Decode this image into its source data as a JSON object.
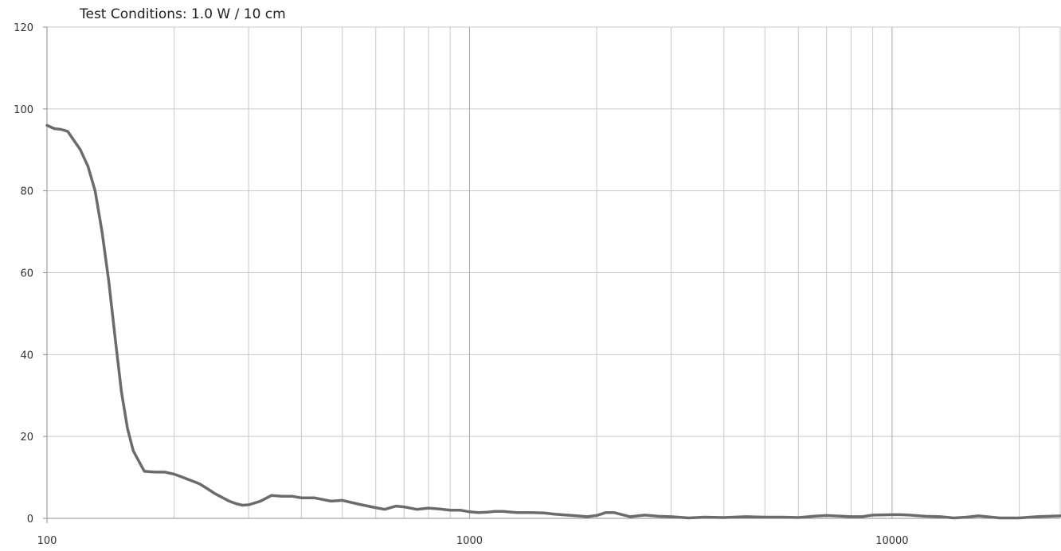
{
  "chart_data": {
    "type": "line",
    "title": "Test Conditions: 1.0 W / 10 cm",
    "xlabel": "",
    "ylabel": "",
    "x_scale": "log",
    "xlim": [
      100,
      25000
    ],
    "ylim": [
      0,
      120
    ],
    "x_ticks": [
      {
        "value": 100,
        "label": "100"
      },
      {
        "value": 1000,
        "label": "1000"
      },
      {
        "value": 10000,
        "label": "10000"
      }
    ],
    "y_ticks": [
      {
        "value": 0,
        "label": "0"
      },
      {
        "value": 20,
        "label": "20"
      },
      {
        "value": 40,
        "label": "40"
      },
      {
        "value": 60,
        "label": "60"
      },
      {
        "value": 80,
        "label": "80"
      },
      {
        "value": 100,
        "label": "100"
      },
      {
        "value": 120,
        "label": "120"
      }
    ],
    "minor_x_gridlines": [
      200,
      300,
      400,
      500,
      600,
      700,
      800,
      900,
      2000,
      3000,
      4000,
      5000,
      6000,
      7000,
      8000,
      9000,
      20000
    ],
    "grid": true,
    "line_color": "#6b6b6b",
    "grid_color": "#c8c8c8",
    "major_grid_color": "#a6a6a6",
    "series": [
      {
        "x": [
          100,
          104,
          108,
          112,
          120,
          125,
          130,
          135,
          140,
          145,
          150,
          155,
          160,
          170,
          180,
          190,
          200,
          210,
          220,
          230,
          240,
          250,
          270,
          280,
          290,
          300,
          320,
          340,
          360,
          380,
          400,
          430,
          470,
          500,
          550,
          600,
          630,
          670,
          700,
          750,
          800,
          850,
          900,
          950,
          1000,
          1050,
          1100,
          1150,
          1200,
          1300,
          1400,
          1500,
          1600,
          1700,
          1800,
          1900,
          2000,
          2100,
          2200,
          2400,
          2600,
          2800,
          3000,
          3300,
          3600,
          4000,
          4500,
          5000,
          5500,
          6000,
          6500,
          7000,
          8000,
          8500,
          9000,
          10000,
          10500,
          11000,
          12000,
          13000,
          14000,
          15000,
          16000,
          18000,
          20000,
          22000,
          25000
        ],
        "y": [
          96,
          95.2,
          95,
          94.5,
          90,
          86,
          80,
          70,
          58,
          44,
          31,
          22,
          16.5,
          11.5,
          11.3,
          11.3,
          10.8,
          10,
          9.2,
          8.4,
          7.2,
          6,
          4.2,
          3.6,
          3.2,
          3.3,
          4.2,
          5.6,
          5.4,
          5.4,
          5,
          5,
          4.2,
          4.4,
          3.4,
          2.6,
          2.2,
          3,
          2.8,
          2.2,
          2.5,
          2.3,
          2,
          2,
          1.6,
          1.4,
          1.5,
          1.7,
          1.7,
          1.4,
          1.4,
          1.3,
          1,
          0.8,
          0.6,
          0.4,
          0.7,
          1.4,
          1.4,
          0.4,
          0.8,
          0.5,
          0.4,
          0.1,
          0.3,
          0.2,
          0.4,
          0.3,
          0.3,
          0.2,
          0.5,
          0.7,
          0.4,
          0.4,
          0.8,
          0.9,
          0.9,
          0.8,
          0.5,
          0.4,
          0.1,
          0.3,
          0.6,
          0.1,
          0.1,
          0.4,
          0.6
        ]
      }
    ]
  }
}
